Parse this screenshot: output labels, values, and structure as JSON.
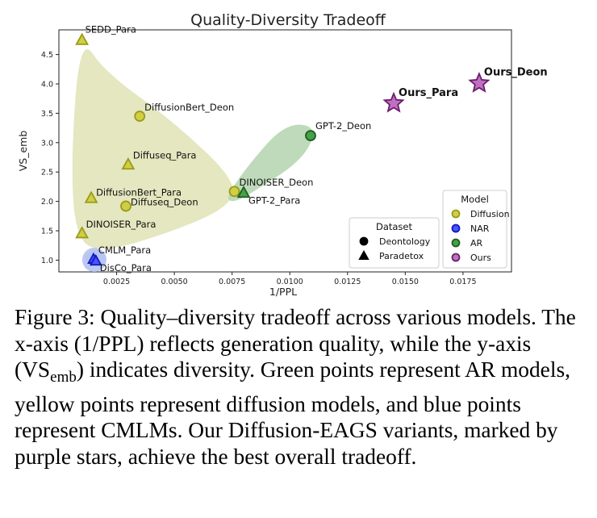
{
  "chart_data": {
    "type": "scatter",
    "title": "Quality-Diversity Tradeoff",
    "xlabel": "1/PPL",
    "ylabel": "VS_emb",
    "xlim": [
      0.0,
      0.0196
    ],
    "ylim": [
      0.8,
      4.92
    ],
    "x_ticks": [
      {
        "value": 0.0025,
        "label": "0.0025"
      },
      {
        "value": 0.005,
        "label": "0.0050"
      },
      {
        "value": 0.0075,
        "label": "0.0075"
      },
      {
        "value": 0.01,
        "label": "0.0100"
      },
      {
        "value": 0.0125,
        "label": "0.0125"
      },
      {
        "value": 0.015,
        "label": "0.0150"
      },
      {
        "value": 0.0175,
        "label": "0.0175"
      }
    ],
    "y_ticks": [
      {
        "value": 1.0,
        "label": "1.0"
      },
      {
        "value": 1.5,
        "label": "1.5"
      },
      {
        "value": 2.0,
        "label": "2.0"
      },
      {
        "value": 2.5,
        "label": "2.5"
      },
      {
        "value": 3.0,
        "label": "3.0"
      },
      {
        "value": 3.5,
        "label": "3.5"
      },
      {
        "value": 4.0,
        "label": "4.0"
      },
      {
        "value": 4.5,
        "label": "4.5"
      }
    ],
    "grid": false,
    "colors": {
      "Diffusion": "#c8c832",
      "NAR": "#1e28ff",
      "AR": "#2e8b2e",
      "Ours": "#a040a0"
    },
    "regions": [
      {
        "model": "Diffusion",
        "color": "#dfe3b4",
        "points": [
          [
            0.0009,
            4.84
          ],
          [
            0.002,
            4.2
          ],
          [
            0.005,
            3.35
          ],
          [
            0.0078,
            2.3
          ],
          [
            0.0072,
            1.86
          ],
          [
            0.0045,
            1.43
          ],
          [
            0.002,
            1.15
          ],
          [
            0.0008,
            1.3
          ],
          [
            0.0005,
            2.5
          ]
        ]
      },
      {
        "model": "NAR",
        "color": "#c3cdf0",
        "points": [
          [
            0.0016,
            1.22
          ],
          [
            0.0022,
            1.04
          ],
          [
            0.0016,
            0.86
          ],
          [
            0.001,
            1.04
          ]
        ]
      },
      {
        "model": "AR",
        "color": "#b3d4ae",
        "points": [
          [
            0.0072,
            2.05
          ],
          [
            0.0082,
            2.62
          ],
          [
            0.0098,
            3.33
          ],
          [
            0.0112,
            3.28
          ],
          [
            0.0106,
            2.72
          ],
          [
            0.0085,
            2.18
          ],
          [
            0.0076,
            1.98
          ]
        ]
      }
    ],
    "points": [
      {
        "label": "SEDD_Para",
        "x": 0.001,
        "y": 4.75,
        "model": "Diffusion",
        "dataset": "Paradetox"
      },
      {
        "label": "DiffusionBert_Deon",
        "x": 0.0035,
        "y": 3.45,
        "model": "Diffusion",
        "dataset": "Deontology"
      },
      {
        "label": "Diffuseq_Para",
        "x": 0.003,
        "y": 2.63,
        "model": "Diffusion",
        "dataset": "Paradetox"
      },
      {
        "label": "DiffusionBert_Para",
        "x": 0.0014,
        "y": 2.06,
        "model": "Diffusion",
        "dataset": "Paradetox"
      },
      {
        "label": "Diffuseq_Deon",
        "x": 0.0029,
        "y": 1.92,
        "model": "Diffusion",
        "dataset": "Deontology"
      },
      {
        "label": "DINOISER_Para",
        "x": 0.001,
        "y": 1.46,
        "model": "Diffusion",
        "dataset": "Paradetox"
      },
      {
        "label": "DINOISER_Deon",
        "x": 0.0076,
        "y": 2.17,
        "model": "Diffusion",
        "dataset": "Deontology"
      },
      {
        "label": "CMLM_Para",
        "x": 0.0015,
        "y": 1.02,
        "model": "NAR",
        "dataset": "Paradetox"
      },
      {
        "label": "DisCo_Para",
        "x": 0.0016,
        "y": 0.99,
        "model": "NAR",
        "dataset": "Paradetox"
      },
      {
        "label": "GPT-2_Deon",
        "x": 0.0109,
        "y": 3.12,
        "model": "AR",
        "dataset": "Deontology"
      },
      {
        "label": "GPT-2_Para",
        "x": 0.008,
        "y": 2.15,
        "model": "AR",
        "dataset": "Paradetox"
      },
      {
        "label": "Ours_Para",
        "x": 0.0145,
        "y": 3.67,
        "model": "Ours",
        "dataset": "Paradetox"
      },
      {
        "label": "Ours_Deon",
        "x": 0.0182,
        "y": 4.01,
        "model": "Ours",
        "dataset": "Deontology"
      }
    ],
    "legends": [
      {
        "title": "Dataset",
        "placement": "lower-center",
        "entries": [
          {
            "label": "Deontology",
            "marker": "circle"
          },
          {
            "label": "Paradetox",
            "marker": "triangle"
          }
        ]
      },
      {
        "title": "Model",
        "placement": "lower-right",
        "entries": [
          {
            "label": "Diffusion",
            "model": "Diffusion"
          },
          {
            "label": "NAR",
            "model": "NAR"
          },
          {
            "label": "AR",
            "model": "AR"
          },
          {
            "label": "Ours",
            "model": "Ours"
          }
        ]
      }
    ]
  },
  "caption": {
    "before": "Figure 3: Quality–diversity tradeoff across various models. The x-axis (1/PPL) reflects generation quality, while the y-axis (VS",
    "sub": "emb",
    "after": ") indicates diversity. Green points represent AR models, yellow points represent diffusion models, and blue points represent CMLMs. Our Diffusion-EAGS variants, marked by purple stars, achieve the best overall tradeoff."
  }
}
